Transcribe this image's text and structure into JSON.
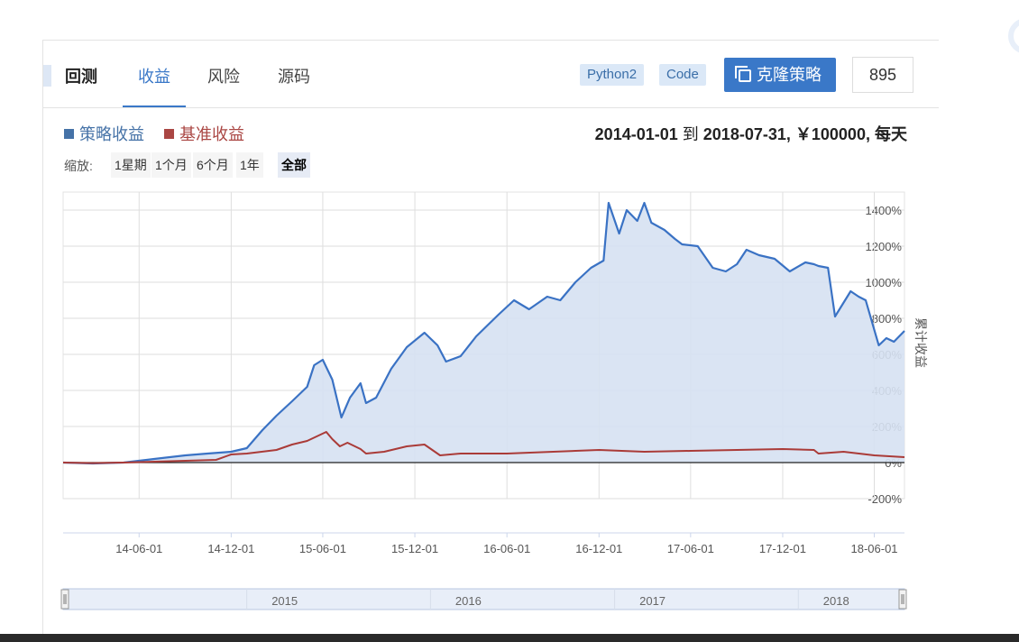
{
  "tabs": [
    {
      "label": "回测",
      "bold": true
    },
    {
      "label": "收益",
      "active": true
    },
    {
      "label": "风险"
    },
    {
      "label": "源码"
    }
  ],
  "tags": [
    "Python2",
    "Code"
  ],
  "clone_button": "克隆策略",
  "clone_count": "895",
  "legend": [
    {
      "name": "策略收益",
      "color": "#4572a7"
    },
    {
      "name": "基准收益",
      "color": "#aa4643"
    }
  ],
  "date_range": {
    "start": "2014-01-01",
    "to": "到",
    "end": "2018-07-31",
    "capital": "￥100000",
    "freq": "每天"
  },
  "zoom": {
    "label": "缩放:",
    "options": [
      "1星期",
      "1个月",
      "6个月",
      "1年",
      "全部"
    ],
    "selected": "全部"
  },
  "colors": {
    "strategy_line": "#3a72c4",
    "strategy_fill": "#d6e1f2",
    "benchmark_line": "#aa3b38",
    "accent": "#3a78c8"
  },
  "icons": {
    "clone": "copy-icon"
  },
  "chart_data": {
    "type": "area",
    "ylabel": "累计收益",
    "ylim": [
      -200,
      1500
    ],
    "yticks": [
      -200,
      0,
      200,
      400,
      600,
      800,
      1000,
      1200,
      1400
    ],
    "ytick_labels": [
      "-200%",
      "0%",
      "200%",
      "400%",
      "600%",
      "800%",
      "1000%",
      "1200%",
      "1400%"
    ],
    "x_range": [
      "2014-01-01",
      "2018-07-31"
    ],
    "xticks": [
      "2014-06-01",
      "2014-12-01",
      "2015-06-01",
      "2015-12-01",
      "2016-06-01",
      "2016-12-01",
      "2017-06-01",
      "2017-12-01",
      "2018-06-01"
    ],
    "xtick_labels": [
      "14-06-01",
      "14-12-01",
      "15-06-01",
      "15-12-01",
      "16-06-01",
      "16-12-01",
      "17-06-01",
      "17-12-01",
      "18-06-01"
    ],
    "navigator_labels": [
      "2015",
      "2016",
      "2017",
      "2018"
    ],
    "series": [
      {
        "name": "策略收益",
        "x": [
          "2014-01-01",
          "2014-03-01",
          "2014-05-01",
          "2014-07-01",
          "2014-09-01",
          "2014-10-15",
          "2014-12-01",
          "2015-01-01",
          "2015-02-01",
          "2015-03-01",
          "2015-04-01",
          "2015-05-01",
          "2015-05-15",
          "2015-06-01",
          "2015-06-20",
          "2015-07-08",
          "2015-07-25",
          "2015-08-15",
          "2015-08-26",
          "2015-09-15",
          "2015-10-15",
          "2015-11-15",
          "2015-12-20",
          "2016-01-15",
          "2016-02-01",
          "2016-03-01",
          "2016-04-01",
          "2016-05-15",
          "2016-06-15",
          "2016-07-15",
          "2016-08-20",
          "2016-09-15",
          "2016-10-15",
          "2016-11-15",
          "2016-12-10",
          "2016-12-20",
          "2017-01-10",
          "2017-01-25",
          "2017-02-15",
          "2017-03-01",
          "2017-03-15",
          "2017-04-10",
          "2017-05-01",
          "2017-05-15",
          "2017-06-15",
          "2017-07-15",
          "2017-08-10",
          "2017-09-01",
          "2017-09-20",
          "2017-10-15",
          "2017-11-15",
          "2017-12-15",
          "2018-01-15",
          "2018-02-01",
          "2018-02-10",
          "2018-03-01",
          "2018-03-15",
          "2018-04-15",
          "2018-05-01",
          "2018-05-15",
          "2018-06-10",
          "2018-06-25",
          "2018-07-10",
          "2018-07-31"
        ],
        "values": [
          0,
          -5,
          0,
          20,
          40,
          50,
          60,
          80,
          180,
          260,
          340,
          420,
          540,
          570,
          460,
          250,
          360,
          440,
          330,
          360,
          520,
          640,
          720,
          650,
          560,
          590,
          700,
          820,
          900,
          850,
          920,
          900,
          1000,
          1080,
          1120,
          1440,
          1270,
          1400,
          1340,
          1440,
          1330,
          1290,
          1240,
          1210,
          1200,
          1080,
          1060,
          1100,
          1180,
          1150,
          1130,
          1060,
          1110,
          1100,
          1090,
          1080,
          810,
          950,
          920,
          900,
          650,
          690,
          670,
          730
        ]
      },
      {
        "name": "基准收益",
        "x": [
          "2014-01-01",
          "2014-03-01",
          "2014-05-01",
          "2014-07-01",
          "2014-09-01",
          "2014-11-01",
          "2014-12-01",
          "2015-01-01",
          "2015-03-01",
          "2015-04-01",
          "2015-05-01",
          "2015-06-08",
          "2015-06-20",
          "2015-07-05",
          "2015-07-20",
          "2015-08-15",
          "2015-08-26",
          "2015-10-01",
          "2015-11-15",
          "2015-12-20",
          "2016-01-20",
          "2016-03-01",
          "2016-06-01",
          "2016-09-01",
          "2016-12-01",
          "2017-03-01",
          "2017-06-01",
          "2017-09-01",
          "2017-12-01",
          "2018-02-01",
          "2018-02-10",
          "2018-04-01",
          "2018-06-01",
          "2018-07-31"
        ],
        "values": [
          0,
          -3,
          0,
          5,
          10,
          15,
          45,
          50,
          70,
          100,
          120,
          170,
          130,
          90,
          110,
          75,
          50,
          60,
          90,
          100,
          40,
          50,
          50,
          60,
          70,
          60,
          65,
          70,
          75,
          70,
          50,
          60,
          40,
          30
        ]
      }
    ]
  }
}
